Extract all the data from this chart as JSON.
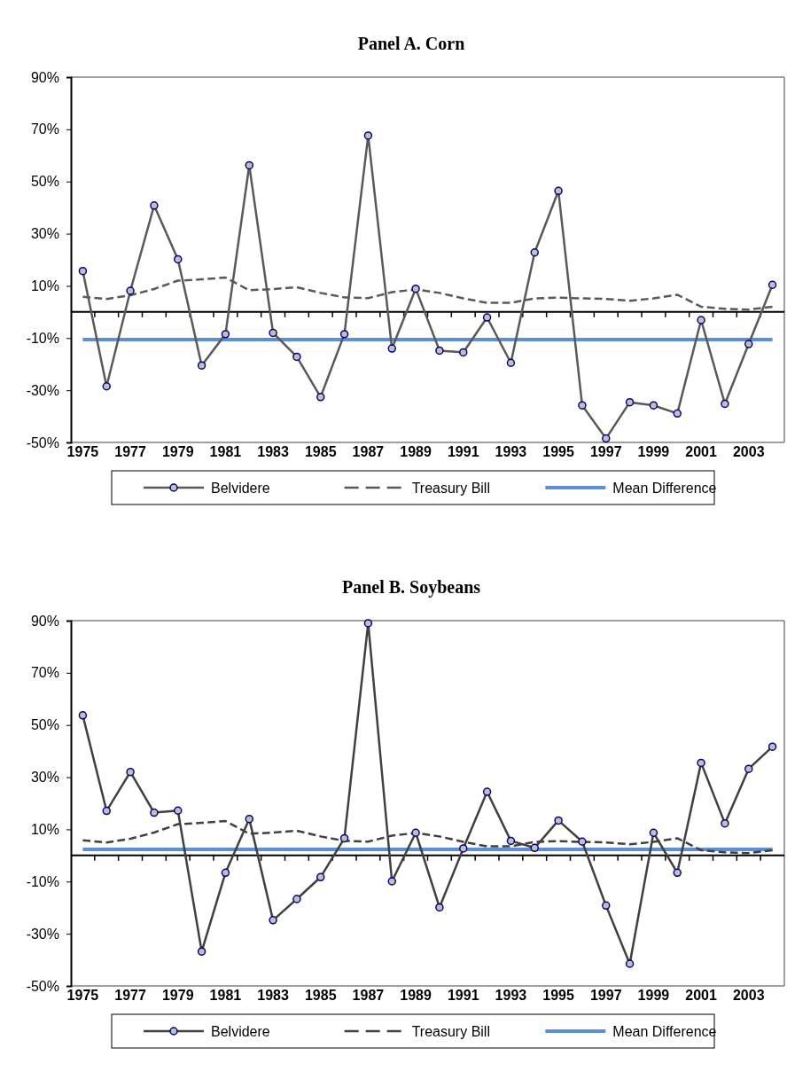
{
  "chart_data": [
    {
      "type": "line",
      "title": "Panel A. Corn",
      "categories": [
        "1975",
        null,
        "1977",
        null,
        "1979",
        null,
        "1981",
        null,
        "1983",
        null,
        "1985",
        null,
        "1987",
        null,
        "1989",
        null,
        "1991",
        null,
        "1993",
        null,
        "1995",
        null,
        "1997",
        null,
        "1999",
        null,
        "2001",
        null,
        "2003",
        null
      ],
      "series": [
        {
          "name": "Belvidere",
          "color": "#595959",
          "marker": "circle",
          "line_style": "solid",
          "values": [
            15.7,
            -28.5,
            8.1,
            40.8,
            20.2,
            -20.5,
            -8.5,
            56.2,
            -8.0,
            -17.2,
            -32.6,
            -8.5,
            67.6,
            -14.0,
            8.9,
            -14.8,
            -15.5,
            -2.1,
            -19.5,
            22.8,
            46.4,
            -35.8,
            -48.5,
            -34.6,
            -35.8,
            -38.9,
            -3.1,
            -35.2,
            -12.3,
            10.4
          ]
        },
        {
          "name": "Treasury Bill",
          "color": "#595959",
          "marker": "none",
          "line_style": "dashed",
          "values": [
            5.8,
            5.0,
            6.4,
            8.8,
            12.0,
            12.5,
            13.2,
            8.3,
            8.8,
            9.5,
            7.3,
            5.6,
            5.3,
            7.6,
            8.6,
            7.3,
            5.2,
            3.5,
            3.5,
            5.2,
            5.5,
            5.2,
            5.0,
            4.3,
            5.2,
            6.6,
            2.0,
            1.2,
            0.9,
            2.0
          ]
        },
        {
          "name": "Mean Difference",
          "color": "#5b8fd6",
          "marker": "none",
          "line_style": "solid",
          "values": [
            -10.6,
            -10.6,
            -10.6,
            -10.6,
            -10.6,
            -10.6,
            -10.6,
            -10.6,
            -10.6,
            -10.6,
            -10.6,
            -10.6,
            -10.6,
            -10.6,
            -10.6,
            -10.6,
            -10.6,
            -10.6,
            -10.6,
            -10.6,
            -10.6,
            -10.6,
            -10.6,
            -10.6,
            -10.6,
            -10.6,
            -10.6,
            -10.6,
            -10.6,
            -10.6
          ]
        }
      ],
      "ylim": [
        -50,
        90
      ],
      "yticks": [
        {
          "value": -50,
          "label": "-50%"
        },
        {
          "value": -30,
          "label": "-30%"
        },
        {
          "value": -10,
          "label": "-10%"
        },
        {
          "value": 10,
          "label": "10%"
        },
        {
          "value": 30,
          "label": "30%"
        },
        {
          "value": 50,
          "label": "50%"
        },
        {
          "value": 70,
          "label": "70%"
        },
        {
          "value": 90,
          "label": "90%"
        }
      ],
      "grid": false,
      "legend": "bottom"
    },
    {
      "type": "line",
      "title": "Panel B. Soybeans",
      "categories": [
        "1975",
        null,
        "1977",
        null,
        "1979",
        null,
        "1981",
        null,
        "1983",
        null,
        "1985",
        null,
        "1987",
        null,
        "1989",
        null,
        "1991",
        null,
        "1993",
        null,
        "1995",
        null,
        "1997",
        null,
        "1999",
        null,
        "2001",
        null,
        "2003",
        null
      ],
      "series": [
        {
          "name": "Belvidere",
          "color": "#404040",
          "marker": "circle",
          "line_style": "solid",
          "values": [
            53.7,
            17.1,
            32.0,
            16.4,
            17.2,
            -36.8,
            -6.6,
            14.0,
            -24.8,
            -16.7,
            -8.3,
            6.6,
            89.0,
            -9.9,
            8.7,
            -19.9,
            2.7,
            24.4,
            5.6,
            2.9,
            13.4,
            5.3,
            -19.2,
            -41.5,
            8.7,
            -6.6,
            35.5,
            12.3,
            33.2,
            41.7
          ]
        },
        {
          "name": "Treasury Bill",
          "color": "#404040",
          "marker": "none",
          "line_style": "dashed",
          "values": [
            5.8,
            5.0,
            6.4,
            8.8,
            12.0,
            12.5,
            13.2,
            8.3,
            8.8,
            9.5,
            7.3,
            5.6,
            5.3,
            7.6,
            8.6,
            7.3,
            5.2,
            3.5,
            3.5,
            5.2,
            5.5,
            5.2,
            5.0,
            4.3,
            5.2,
            6.6,
            2.0,
            1.2,
            0.9,
            2.0
          ]
        },
        {
          "name": "Mean Difference",
          "color": "#5b8fd6",
          "marker": "none",
          "line_style": "solid",
          "values": [
            2.3,
            2.3,
            2.3,
            2.3,
            2.3,
            2.3,
            2.3,
            2.3,
            2.3,
            2.3,
            2.3,
            2.3,
            2.3,
            2.3,
            2.3,
            2.3,
            2.3,
            2.3,
            2.3,
            2.3,
            2.3,
            2.3,
            2.3,
            2.3,
            2.3,
            2.3,
            2.3,
            2.3,
            2.3,
            2.3
          ]
        }
      ],
      "ylim": [
        -50,
        90
      ],
      "yticks": [
        {
          "value": -50,
          "label": "-50%"
        },
        {
          "value": -30,
          "label": "-30%"
        },
        {
          "value": -10,
          "label": "-10%"
        },
        {
          "value": 10,
          "label": "10%"
        },
        {
          "value": 30,
          "label": "30%"
        },
        {
          "value": 50,
          "label": "50%"
        },
        {
          "value": 70,
          "label": "70%"
        },
        {
          "value": 90,
          "label": "90%"
        }
      ],
      "grid": false,
      "legend": "bottom"
    }
  ]
}
